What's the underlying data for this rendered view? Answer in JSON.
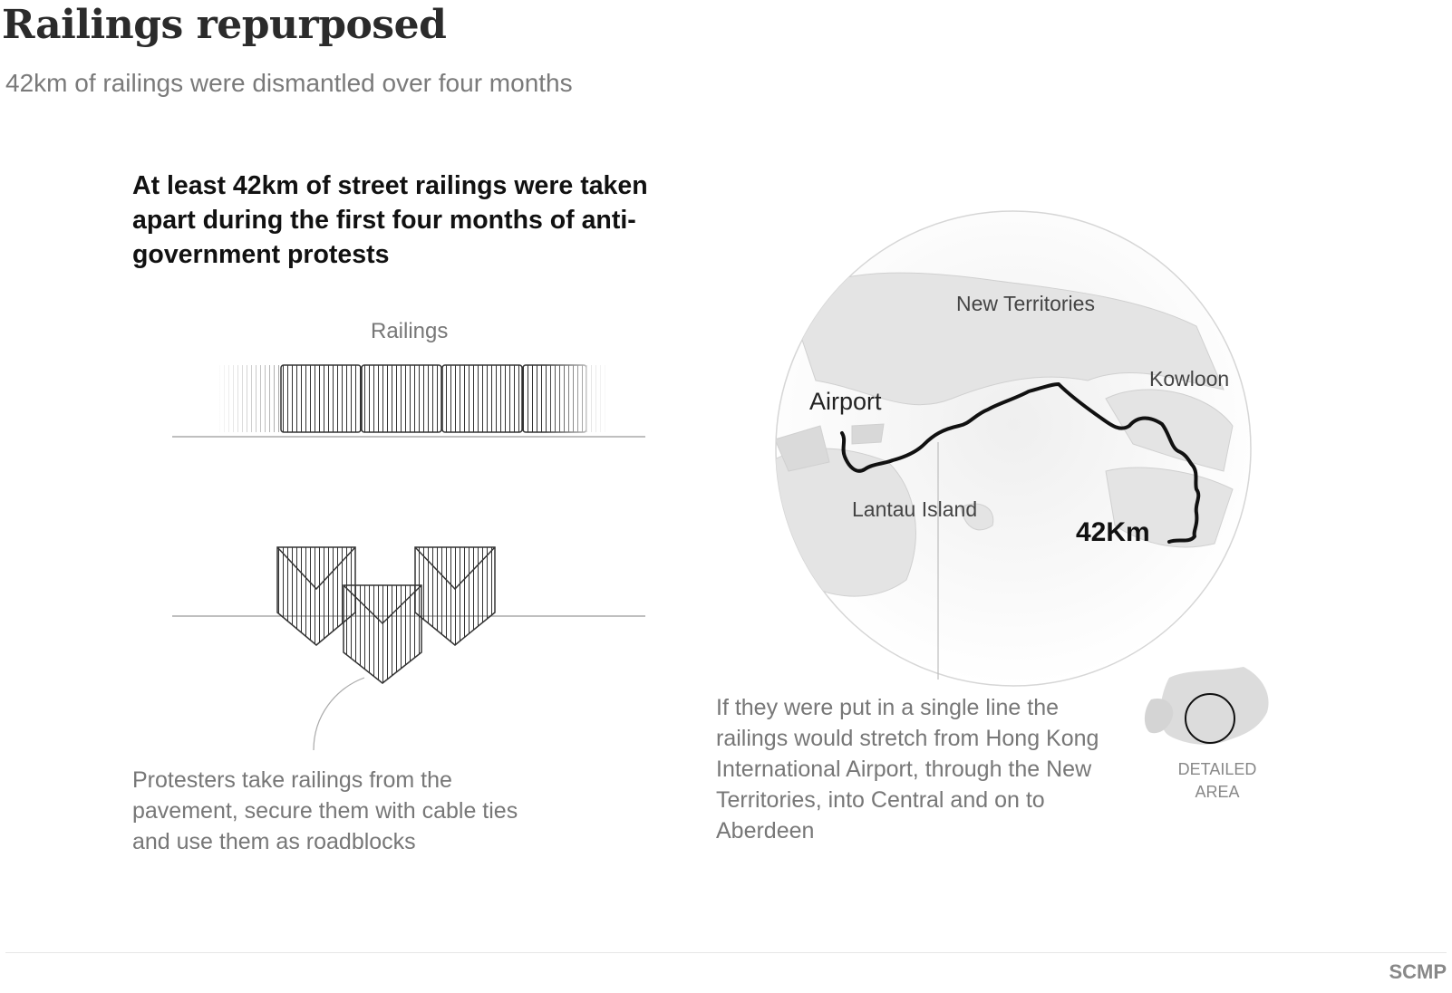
{
  "header": {
    "title": "Railings repurposed",
    "subtitle": "42km of railings were dismantled over four months"
  },
  "intro": {
    "headline": "At least 42km of street railings were taken apart during the first four months of anti-government protests"
  },
  "illustration": {
    "railings_label": "Railings",
    "roadblock_caption": "Protesters take railings from the pavement, secure them with cable ties and use them as roadblocks"
  },
  "map": {
    "labels": {
      "new_territories": "New Territories",
      "kowloon": "Kowloon",
      "airport": "Airport",
      "lantau": "Lantau Island",
      "distance": "42Km"
    },
    "caption": "If they were put in a single line the railings would stretch from Hong Kong International Airport, through the New Territories, into Central and on to Aberdeen",
    "locator_label": "DETAILED AREA"
  },
  "footer": {
    "source": "SCMP"
  },
  "colors": {
    "route": "#111111",
    "text_grey": "#777777",
    "map_grey": "#d0d0d0"
  }
}
